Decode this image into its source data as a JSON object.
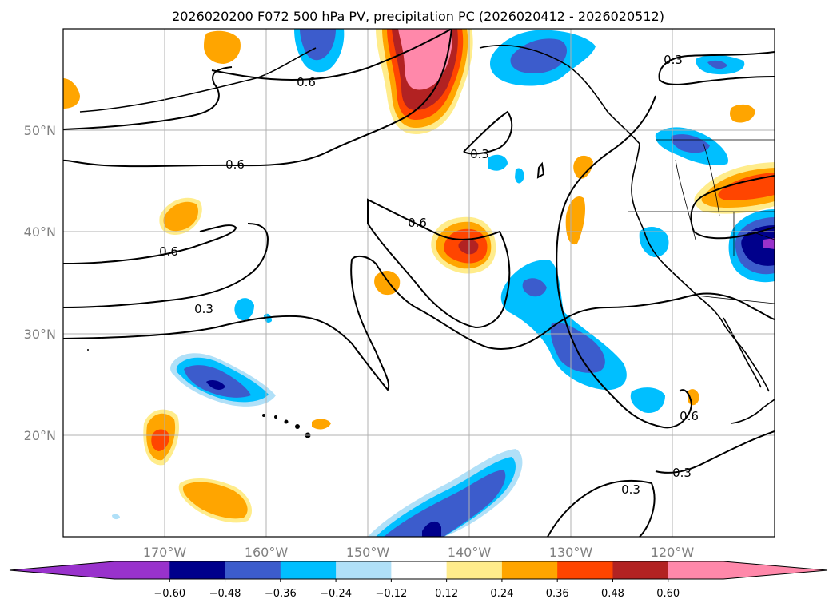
{
  "title": "2026020200 F072 500 hPa PV, precipitation PC (2026020412 - 2026020512)",
  "map": {
    "projection": "PlateCarree",
    "lon_range": [
      -180,
      -110
    ],
    "lat_range": [
      10,
      60
    ],
    "gridlines": true
  },
  "lat_labels": [
    "50°N",
    "40°N",
    "30°N",
    "20°N"
  ],
  "lon_labels": [
    "170°W",
    "160°W",
    "150°W",
    "140°W",
    "130°W",
    "120°W"
  ],
  "contour_labels": [
    "0.6",
    "0.3",
    "0.6",
    "0.6",
    "0.3",
    "0.6",
    "0.3",
    "0.6",
    "0.3",
    "0.3"
  ],
  "colorbar": {
    "extend": "both",
    "colors": [
      "#9932cc",
      "#00008b",
      "#3c5ccc",
      "#00bfff",
      "#b0e0f8",
      "#ffffff",
      "#ffec8b",
      "#ffa500",
      "#ff4500",
      "#b22222",
      "#ff88aa",
      "#ff88aa"
    ],
    "tick_labels": [
      "−0.60",
      "−0.48",
      "−0.36",
      "−0.24",
      "−0.12",
      "0.12",
      "0.24",
      "0.36",
      "0.48",
      "0.60"
    ]
  }
}
